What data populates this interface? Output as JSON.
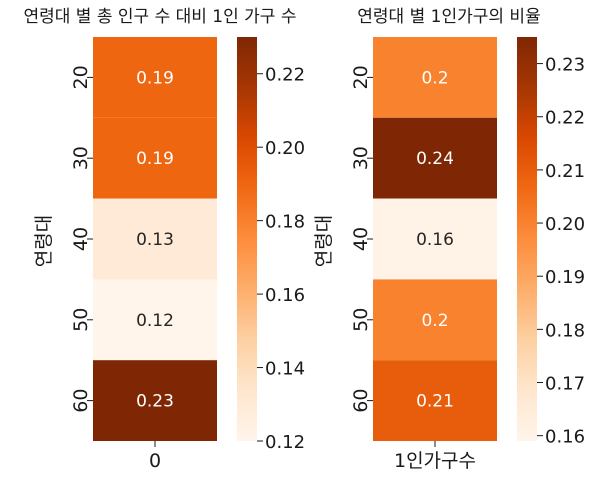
{
  "chart_data": [
    {
      "type": "heatmap",
      "title": "연령대 별 총 인구 수 대비 1인 가구 수",
      "ylabel": "연령대",
      "xlabel": "",
      "x_categories": [
        "0"
      ],
      "y_categories": [
        "20",
        "30",
        "40",
        "50",
        "60"
      ],
      "values": [
        0.19,
        0.19,
        0.13,
        0.12,
        0.23
      ],
      "cell_labels": [
        "0.19",
        "0.19",
        "0.13",
        "0.12",
        "0.23"
      ],
      "colorscale": "Oranges",
      "colorbar": {
        "range": [
          0.12,
          0.23
        ],
        "ticks": [
          0.12,
          0.14,
          0.16,
          0.18,
          0.2,
          0.22
        ],
        "tick_labels": [
          "0.12",
          "0.14",
          "0.16",
          "0.18",
          "0.20",
          "0.22"
        ]
      }
    },
    {
      "type": "heatmap",
      "title": "연령대 별 1인가구의 비율",
      "ylabel": "연령대",
      "xlabel": "",
      "x_categories": [
        "1인가구수"
      ],
      "y_categories": [
        "20",
        "30",
        "40",
        "50",
        "60"
      ],
      "values": [
        0.2,
        0.24,
        0.16,
        0.2,
        0.21
      ],
      "cell_labels": [
        "0.2",
        "0.24",
        "0.16",
        "0.2",
        "0.21"
      ],
      "colorscale": "Oranges",
      "colorbar": {
        "range": [
          0.159,
          0.235
        ],
        "ticks": [
          0.16,
          0.17,
          0.18,
          0.19,
          0.2,
          0.21,
          0.22,
          0.23
        ],
        "tick_labels": [
          "0.16",
          "0.17",
          "0.18",
          "0.19",
          "0.20",
          "0.21",
          "0.22",
          "0.23"
        ]
      }
    }
  ]
}
